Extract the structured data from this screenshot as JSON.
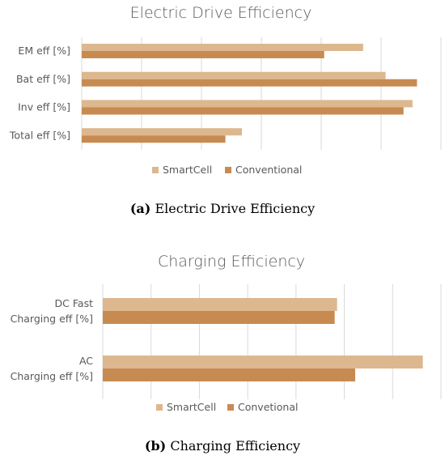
{
  "colors": {
    "smartcell": "#DDB78E",
    "conventional": "#C78B52",
    "grid": "#D9D9D9",
    "text": "#595959"
  },
  "captions": [
    {
      "label": "(a)",
      "text": " Electric Drive Efficiency"
    },
    {
      "label": "(b)",
      "text": " Charging Efficiency"
    }
  ],
  "chart_data": [
    {
      "type": "bar",
      "orientation": "horizontal",
      "title": "Electric Drive Efficiency",
      "categories": [
        "EM eff [%]",
        "Bat eff  [%]",
        "Inv eff [%]",
        "Total eff [%]"
      ],
      "series": [
        {
          "name": "SmartCell",
          "values": [
            94,
            101.5,
            110.5,
            53.5
          ]
        },
        {
          "name": "Conventional",
          "values": [
            81,
            112,
            107.5,
            48
          ]
        }
      ],
      "xlim": [
        0,
        120
      ],
      "grid": true,
      "legend": "bottom"
    },
    {
      "type": "bar",
      "orientation": "horizontal",
      "title": "Charging Efficiency",
      "categories": [
        "DC Fast\nCharging eff [%]",
        "AC\nCharging eff [%]"
      ],
      "series": [
        {
          "name": "SmartCell",
          "values": [
            97,
            132.5
          ]
        },
        {
          "name": "Convetional",
          "values": [
            96,
            104.5
          ]
        }
      ],
      "xlim": [
        0,
        140
      ],
      "grid": true,
      "legend": "bottom"
    }
  ]
}
